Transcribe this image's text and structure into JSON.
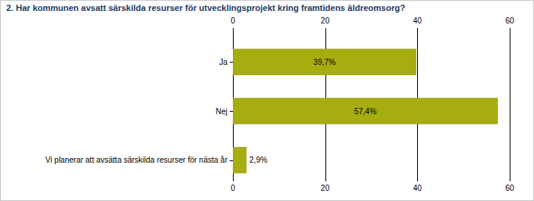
{
  "chart_data": {
    "type": "bar",
    "orientation": "horizontal",
    "title": "2. Har kommunen avsatt särskilda resurser för utvecklingsprojekt kring framtidens äldreomsorg?",
    "categories": [
      "Ja",
      "Nej",
      "Vi planerar att avsätta särskilda resurser för nästa år"
    ],
    "values": [
      39.7,
      57.4,
      2.9
    ],
    "value_labels": [
      "39,7%",
      "57,4%",
      "2,9%"
    ],
    "color": "#a6ad0e",
    "xlim": [
      0,
      60
    ],
    "xticks": [
      0,
      20,
      40,
      60
    ],
    "grid": true,
    "data_labels": true
  }
}
